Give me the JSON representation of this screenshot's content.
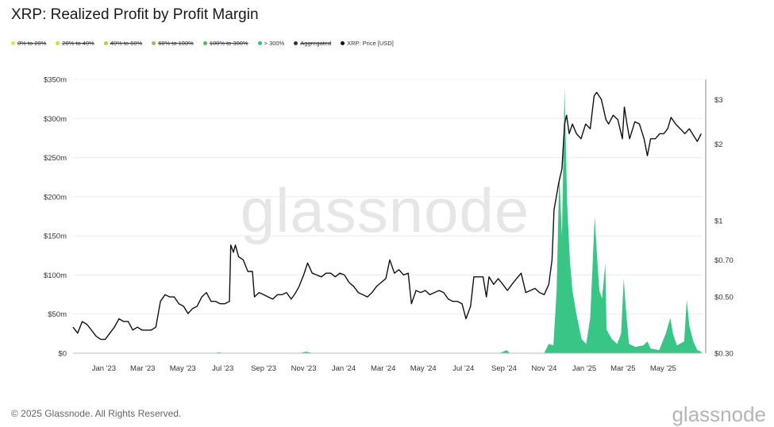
{
  "header": {
    "title": "XRP: Realized Profit by Profit Margin"
  },
  "legend": [
    {
      "label": "0% to 20%",
      "color": "#e8e23a",
      "enabled": false
    },
    {
      "label": "20% to 40%",
      "color": "#c9de3c",
      "enabled": false
    },
    {
      "label": "40% to 60%",
      "color": "#a9d33f",
      "enabled": false
    },
    {
      "label": "60% to 100%",
      "color": "#86c941",
      "enabled": false
    },
    {
      "label": "100% to 300%",
      "color": "#4cbf54",
      "enabled": false
    },
    {
      "label": "> 300%",
      "color": "#2ec27e",
      "enabled": true
    },
    {
      "label": "Aggregated",
      "color": "#333333",
      "enabled": false
    },
    {
      "label": "XRP: Price [USD]",
      "color": "#111111",
      "enabled": true
    }
  ],
  "watermark": "glassnode",
  "footer": {
    "copyright": "© 2025 Glassnode. All Rights Reserved.",
    "brand": "glassnode"
  },
  "chart_data": {
    "type": "line",
    "x_axis": {
      "ticks": [
        "Jan '23",
        "Mar '23",
        "May '23",
        "Jul '23",
        "Sep '23",
        "Nov '23",
        "Jan '24",
        "Mar '24",
        "May '24",
        "Jul '24",
        "Sep '24",
        "Nov '24",
        "Jan '25",
        "Mar '25",
        "May '25"
      ],
      "range": [
        "2022-11-15",
        "2025-06-30"
      ]
    },
    "y_left": {
      "ticks": [
        0,
        50,
        100,
        150,
        200,
        250,
        300,
        350
      ],
      "tick_labels": [
        "$0",
        "$50m",
        "$100m",
        "$150m",
        "$200m",
        "$250m",
        "$300m",
        "$350m"
      ],
      "range": [
        0,
        350
      ],
      "units": "millions USD"
    },
    "y_right": {
      "scale": "log",
      "ticks": [
        0.3,
        0.5,
        0.7,
        1,
        2,
        3
      ],
      "tick_labels": [
        "$0.30",
        "$0.50",
        "$0.70",
        "$1",
        "$2",
        "$3"
      ],
      "range": [
        0.3,
        3.6
      ]
    },
    "grid": true,
    "series": [
      {
        "name": "> 300%",
        "kind": "area",
        "axis": "left",
        "color": "#2ec27e",
        "points": [
          [
            "2022-11-15",
            0
          ],
          [
            "2023-06-15",
            0
          ],
          [
            "2023-06-25",
            1
          ],
          [
            "2023-07-05",
            0
          ],
          [
            "2023-10-25",
            0
          ],
          [
            "2023-11-05",
            2
          ],
          [
            "2023-11-15",
            0
          ],
          [
            "2024-08-25",
            0
          ],
          [
            "2024-09-05",
            4
          ],
          [
            "2024-09-10",
            0
          ],
          [
            "2024-11-01",
            0
          ],
          [
            "2024-11-08",
            12
          ],
          [
            "2024-11-15",
            10
          ],
          [
            "2024-11-20",
            80
          ],
          [
            "2024-11-24",
            230
          ],
          [
            "2024-11-28",
            150
          ],
          [
            "2024-12-02",
            340
          ],
          [
            "2024-12-06",
            190
          ],
          [
            "2024-12-10",
            120
          ],
          [
            "2024-12-14",
            80
          ],
          [
            "2024-12-20",
            50
          ],
          [
            "2024-12-28",
            18
          ],
          [
            "2025-01-04",
            12
          ],
          [
            "2025-01-10",
            45
          ],
          [
            "2025-01-14",
            120
          ],
          [
            "2025-01-17",
            175
          ],
          [
            "2025-01-20",
            130
          ],
          [
            "2025-01-24",
            80
          ],
          [
            "2025-01-28",
            70
          ],
          [
            "2025-02-02",
            115
          ],
          [
            "2025-02-04",
            30
          ],
          [
            "2025-02-12",
            18
          ],
          [
            "2025-02-20",
            12
          ],
          [
            "2025-02-26",
            25
          ],
          [
            "2025-03-02",
            95
          ],
          [
            "2025-03-05",
            60
          ],
          [
            "2025-03-10",
            12
          ],
          [
            "2025-03-20",
            8
          ],
          [
            "2025-04-01",
            10
          ],
          [
            "2025-04-07",
            15
          ],
          [
            "2025-04-12",
            6
          ],
          [
            "2025-04-25",
            4
          ],
          [
            "2025-05-05",
            25
          ],
          [
            "2025-05-12",
            45
          ],
          [
            "2025-05-16",
            25
          ],
          [
            "2025-05-22",
            10
          ],
          [
            "2025-06-02",
            15
          ],
          [
            "2025-06-06",
            68
          ],
          [
            "2025-06-10",
            35
          ],
          [
            "2025-06-16",
            15
          ],
          [
            "2025-06-22",
            4
          ],
          [
            "2025-06-28",
            2
          ]
        ]
      },
      {
        "name": "XRP: Price [USD]",
        "kind": "line",
        "axis": "right",
        "color": "#111111",
        "points": [
          [
            "2022-11-15",
            0.38
          ],
          [
            "2022-11-22",
            0.36
          ],
          [
            "2022-11-29",
            0.4
          ],
          [
            "2022-12-06",
            0.39
          ],
          [
            "2022-12-13",
            0.37
          ],
          [
            "2022-12-20",
            0.35
          ],
          [
            "2022-12-27",
            0.34
          ],
          [
            "2023-01-03",
            0.34
          ],
          [
            "2023-01-10",
            0.36
          ],
          [
            "2023-01-17",
            0.38
          ],
          [
            "2023-01-24",
            0.41
          ],
          [
            "2023-01-31",
            0.4
          ],
          [
            "2023-02-07",
            0.4
          ],
          [
            "2023-02-14",
            0.37
          ],
          [
            "2023-02-21",
            0.38
          ],
          [
            "2023-02-28",
            0.37
          ],
          [
            "2023-03-07",
            0.37
          ],
          [
            "2023-03-14",
            0.37
          ],
          [
            "2023-03-21",
            0.38
          ],
          [
            "2023-03-28",
            0.48
          ],
          [
            "2023-04-04",
            0.51
          ],
          [
            "2023-04-11",
            0.5
          ],
          [
            "2023-04-18",
            0.5
          ],
          [
            "2023-04-25",
            0.47
          ],
          [
            "2023-05-02",
            0.46
          ],
          [
            "2023-05-09",
            0.43
          ],
          [
            "2023-05-16",
            0.45
          ],
          [
            "2023-05-23",
            0.46
          ],
          [
            "2023-05-30",
            0.5
          ],
          [
            "2023-06-06",
            0.52
          ],
          [
            "2023-06-13",
            0.48
          ],
          [
            "2023-06-20",
            0.48
          ],
          [
            "2023-06-27",
            0.47
          ],
          [
            "2023-07-04",
            0.47
          ],
          [
            "2023-07-11",
            0.48
          ],
          [
            "2023-07-13",
            0.8
          ],
          [
            "2023-07-17",
            0.75
          ],
          [
            "2023-07-20",
            0.8
          ],
          [
            "2023-07-25",
            0.72
          ],
          [
            "2023-08-01",
            0.7
          ],
          [
            "2023-08-08",
            0.63
          ],
          [
            "2023-08-15",
            0.63
          ],
          [
            "2023-08-18",
            0.5
          ],
          [
            "2023-08-25",
            0.52
          ],
          [
            "2023-09-01",
            0.51
          ],
          [
            "2023-09-08",
            0.5
          ],
          [
            "2023-09-15",
            0.49
          ],
          [
            "2023-09-22",
            0.51
          ],
          [
            "2023-09-29",
            0.51
          ],
          [
            "2023-10-06",
            0.52
          ],
          [
            "2023-10-13",
            0.49
          ],
          [
            "2023-10-20",
            0.52
          ],
          [
            "2023-10-25",
            0.55
          ],
          [
            "2023-11-01",
            0.61
          ],
          [
            "2023-11-07",
            0.68
          ],
          [
            "2023-11-14",
            0.62
          ],
          [
            "2023-11-21",
            0.61
          ],
          [
            "2023-11-28",
            0.6
          ],
          [
            "2023-12-05",
            0.62
          ],
          [
            "2023-12-12",
            0.62
          ],
          [
            "2023-12-19",
            0.6
          ],
          [
            "2023-12-26",
            0.62
          ],
          [
            "2024-01-02",
            0.61
          ],
          [
            "2024-01-09",
            0.57
          ],
          [
            "2024-01-16",
            0.55
          ],
          [
            "2024-01-23",
            0.52
          ],
          [
            "2024-01-30",
            0.51
          ],
          [
            "2024-02-06",
            0.5
          ],
          [
            "2024-02-13",
            0.52
          ],
          [
            "2024-02-20",
            0.55
          ],
          [
            "2024-02-27",
            0.57
          ],
          [
            "2024-03-05",
            0.59
          ],
          [
            "2024-03-11",
            0.7
          ],
          [
            "2024-03-18",
            0.62
          ],
          [
            "2024-03-25",
            0.64
          ],
          [
            "2024-04-01",
            0.61
          ],
          [
            "2024-04-08",
            0.62
          ],
          [
            "2024-04-13",
            0.47
          ],
          [
            "2024-04-20",
            0.53
          ],
          [
            "2024-04-27",
            0.52
          ],
          [
            "2024-05-04",
            0.53
          ],
          [
            "2024-05-11",
            0.51
          ],
          [
            "2024-05-18",
            0.52
          ],
          [
            "2024-05-25",
            0.53
          ],
          [
            "2024-06-01",
            0.52
          ],
          [
            "2024-06-08",
            0.49
          ],
          [
            "2024-06-15",
            0.48
          ],
          [
            "2024-06-22",
            0.48
          ],
          [
            "2024-06-29",
            0.47
          ],
          [
            "2024-07-05",
            0.41
          ],
          [
            "2024-07-12",
            0.46
          ],
          [
            "2024-07-17",
            0.6
          ],
          [
            "2024-07-24",
            0.6
          ],
          [
            "2024-07-31",
            0.6
          ],
          [
            "2024-08-05",
            0.5
          ],
          [
            "2024-08-09",
            0.6
          ],
          [
            "2024-08-16",
            0.56
          ],
          [
            "2024-08-23",
            0.59
          ],
          [
            "2024-08-30",
            0.56
          ],
          [
            "2024-09-06",
            0.53
          ],
          [
            "2024-09-13",
            0.56
          ],
          [
            "2024-09-20",
            0.59
          ],
          [
            "2024-09-27",
            0.62
          ],
          [
            "2024-10-04",
            0.52
          ],
          [
            "2024-10-11",
            0.53
          ],
          [
            "2024-10-18",
            0.54
          ],
          [
            "2024-10-25",
            0.52
          ],
          [
            "2024-11-01",
            0.51
          ],
          [
            "2024-11-08",
            0.56
          ],
          [
            "2024-11-13",
            0.7
          ],
          [
            "2024-11-16",
            1.1
          ],
          [
            "2024-11-23",
            1.4
          ],
          [
            "2024-11-28",
            1.6
          ],
          [
            "2024-12-02",
            2.4
          ],
          [
            "2024-12-05",
            2.6
          ],
          [
            "2024-12-09",
            2.2
          ],
          [
            "2024-12-14",
            2.4
          ],
          [
            "2024-12-20",
            2.2
          ],
          [
            "2024-12-27",
            2.1
          ],
          [
            "2025-01-03",
            2.4
          ],
          [
            "2025-01-10",
            2.3
          ],
          [
            "2025-01-16",
            3.1
          ],
          [
            "2025-01-20",
            3.2
          ],
          [
            "2025-01-27",
            3.0
          ],
          [
            "2025-02-03",
            2.5
          ],
          [
            "2025-02-07",
            2.4
          ],
          [
            "2025-02-14",
            2.6
          ],
          [
            "2025-02-21",
            2.5
          ],
          [
            "2025-02-28",
            2.1
          ],
          [
            "2025-03-03",
            2.8
          ],
          [
            "2025-03-07",
            2.4
          ],
          [
            "2025-03-11",
            2.1
          ],
          [
            "2025-03-19",
            2.45
          ],
          [
            "2025-03-26",
            2.4
          ],
          [
            "2025-04-02",
            2.1
          ],
          [
            "2025-04-07",
            1.8
          ],
          [
            "2025-04-12",
            2.1
          ],
          [
            "2025-04-19",
            2.1
          ],
          [
            "2025-04-26",
            2.2
          ],
          [
            "2025-05-02",
            2.2
          ],
          [
            "2025-05-08",
            2.3
          ],
          [
            "2025-05-13",
            2.55
          ],
          [
            "2025-05-20",
            2.4
          ],
          [
            "2025-05-27",
            2.3
          ],
          [
            "2025-06-03",
            2.2
          ],
          [
            "2025-06-10",
            2.3
          ],
          [
            "2025-06-17",
            2.15
          ],
          [
            "2025-06-22",
            2.05
          ],
          [
            "2025-06-28",
            2.2
          ]
        ]
      }
    ]
  }
}
